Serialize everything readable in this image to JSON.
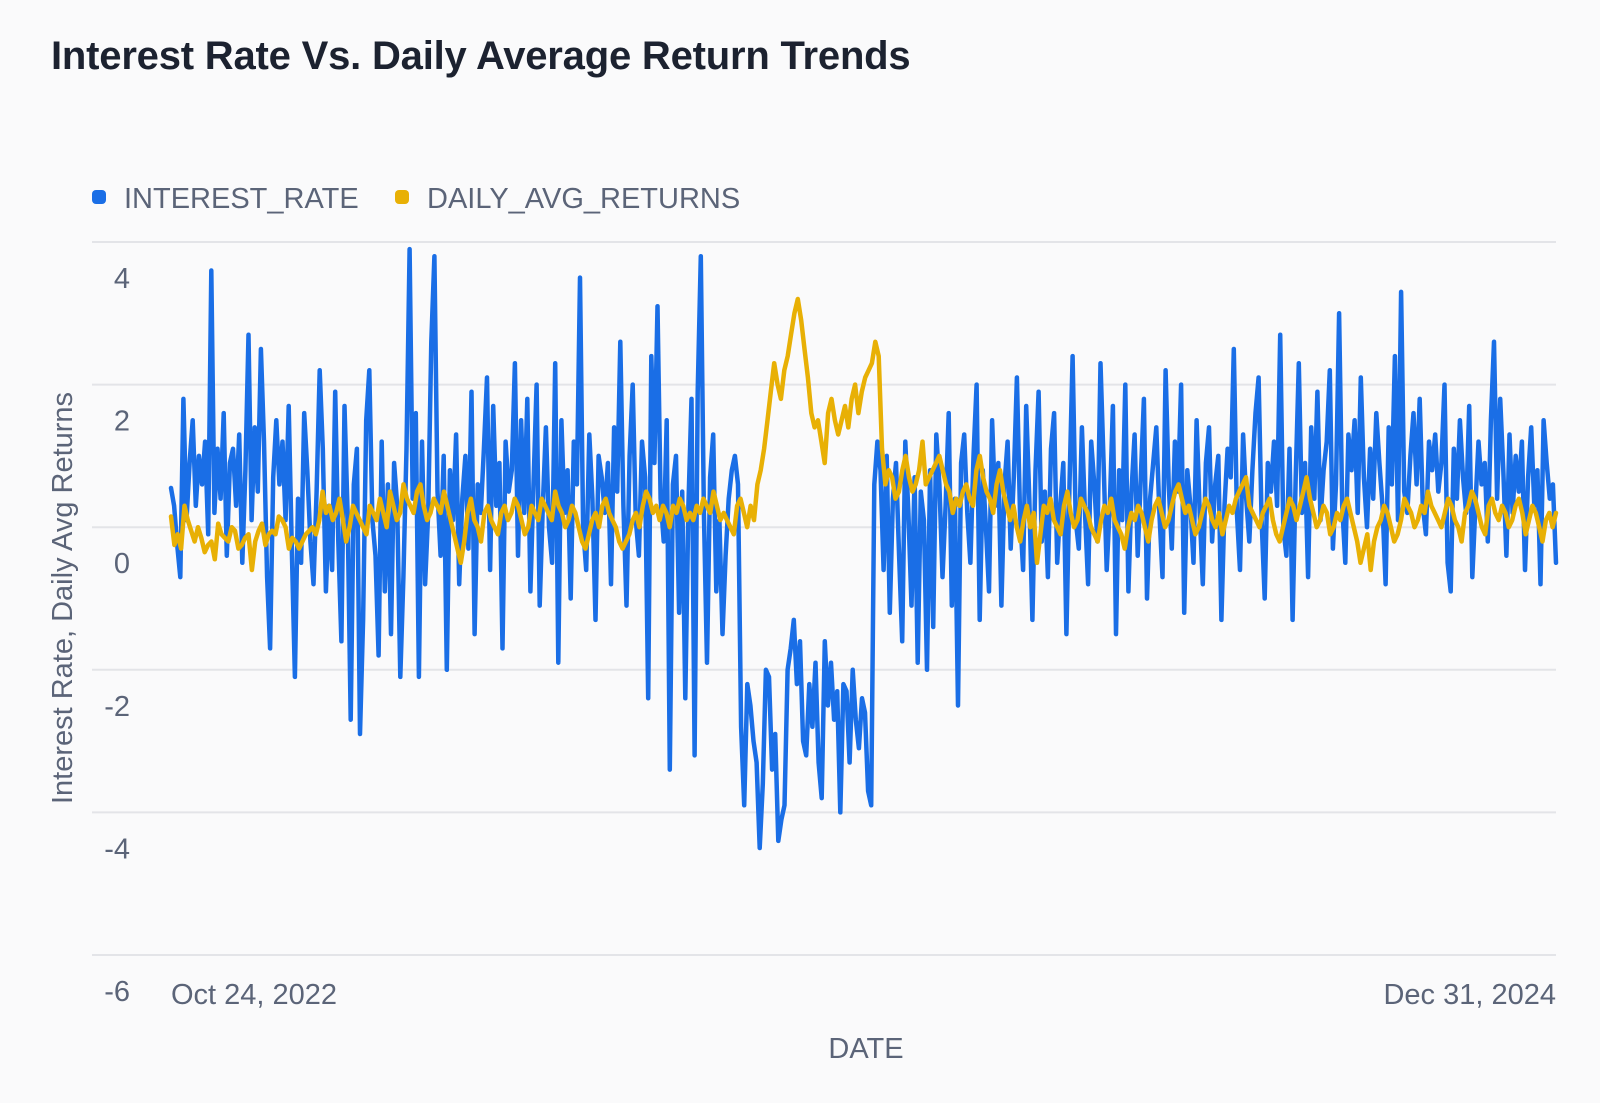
{
  "chart_data": {
    "type": "line",
    "title": "Interest Rate Vs. Daily Average Return Trends",
    "xlabel": "DATE",
    "ylabel": "Interest Rate, Daily Avg Returns",
    "x_range": [
      "Oct 24, 2022",
      "Dec 31, 2024"
    ],
    "x_tick_labels": [
      "Oct 24, 2022",
      "Dec 31, 2024"
    ],
    "ylim": [
      -6,
      4
    ],
    "y_ticks": [
      4,
      2,
      0,
      -2,
      -4,
      -6
    ],
    "grid": true,
    "legend_position": "top-left",
    "series": [
      {
        "name": "INTEREST_RATE",
        "color": "#1a6ee6",
        "values": [
          0.55,
          0.3,
          -0.25,
          -0.7,
          1.8,
          0.1,
          0.9,
          1.5,
          0.3,
          1.0,
          0.6,
          1.2,
          -0.1,
          3.6,
          0.2,
          1.1,
          0.4,
          1.6,
          -0.4,
          0.9,
          1.1,
          0.3,
          1.3,
          -0.5,
          0.8,
          2.7,
          0.1,
          1.4,
          0.5,
          2.5,
          1.2,
          -0.7,
          -1.7,
          0.7,
          1.5,
          0.6,
          1.2,
          0.1,
          1.7,
          -0.3,
          -2.1,
          0.4,
          -0.5,
          1.6,
          0.8,
          -0.2,
          -0.8,
          0.5,
          2.2,
          1.1,
          -0.9,
          0.3,
          -0.6,
          1.9,
          -0.2,
          -1.6,
          1.7,
          0.2,
          -2.7,
          0.6,
          1.1,
          -2.9,
          -1.3,
          1.5,
          2.2,
          0.1,
          -0.4,
          -1.8,
          1.2,
          -0.9,
          0.6,
          -1.5,
          0.9,
          0.3,
          -2.1,
          -0.7,
          1.1,
          3.9,
          0.4,
          1.6,
          -2.1,
          1.2,
          -0.8,
          0.2,
          2.6,
          3.8,
          0.5,
          -0.4,
          1.0,
          -2.0,
          0.8,
          0.1,
          1.3,
          -0.8,
          0.4,
          1.0,
          -0.3,
          1.9,
          -1.5,
          0.6,
          0.2,
          1.1,
          2.1,
          -0.6,
          1.7,
          0.3,
          0.9,
          -1.7,
          1.2,
          0.5,
          0.8,
          2.3,
          -0.4,
          1.5,
          0.2,
          1.8,
          -0.9,
          0.6,
          2.0,
          -1.1,
          0.3,
          1.4,
          0.0,
          -0.5,
          2.3,
          -1.9,
          1.5,
          0.2,
          0.8,
          -1.0,
          1.2,
          0.6,
          3.5,
          0.0,
          -0.6,
          1.3,
          0.4,
          -1.3,
          1.0,
          0.7,
          0.2,
          0.9,
          -0.8,
          1.4,
          0.5,
          2.6,
          0.3,
          -1.1,
          1.0,
          2.0,
          0.1,
          -0.4,
          1.2,
          0.7,
          -2.4,
          2.4,
          0.9,
          3.1,
          0.4,
          -0.2,
          1.5,
          -3.4,
          0.6,
          1.0,
          -1.2,
          0.5,
          -2.4,
          0.3,
          1.8,
          -3.2,
          1.9,
          3.8,
          0.2,
          -1.9,
          0.7,
          1.3,
          -0.9,
          0.1,
          -1.5,
          -0.4,
          0.4,
          0.8,
          1.0,
          0.6,
          -2.8,
          -3.9,
          -2.2,
          -2.5,
          -3.0,
          -3.3,
          -4.5,
          -3.6,
          -2.0,
          -2.1,
          -3.4,
          -2.9,
          -4.4,
          -4.1,
          -3.9,
          -2.0,
          -1.7,
          -1.3,
          -2.2,
          -1.6,
          -3.0,
          -3.2,
          -2.2,
          -2.8,
          -1.9,
          -3.3,
          -3.8,
          -1.6,
          -2.5,
          -1.9,
          -2.7,
          -2.3,
          -4.0,
          -2.2,
          -2.3,
          -3.3,
          -2.0,
          -2.7,
          -3.1,
          -2.4,
          -2.6,
          -3.7,
          -3.9,
          0.6,
          1.2,
          0.8,
          -0.6,
          1.0,
          -1.2,
          0.4,
          0.9,
          -0.4,
          -1.6,
          1.2,
          0.2,
          -1.1,
          0.7,
          -1.9,
          0.5,
          0.1,
          -2.0,
          0.8,
          -1.4,
          1.3,
          0.6,
          -0.7,
          0.3,
          1.6,
          -1.1,
          0.4,
          -2.5,
          0.9,
          1.3,
          0.2,
          -0.5,
          1.0,
          2.0,
          -1.3,
          0.8,
          0.0,
          -0.9,
          1.5,
          0.3,
          0.9,
          -1.1,
          0.6,
          1.2,
          -0.3,
          0.7,
          2.1,
          0.2,
          -0.6,
          1.7,
          0.4,
          -1.3,
          0.8,
          1.9,
          -0.2,
          0.5,
          -0.7,
          1.1,
          1.6,
          -0.5,
          0.3,
          0.9,
          -1.5,
          0.6,
          2.4,
          0.1,
          -0.3,
          1.4,
          0.2,
          -0.8,
          1.2,
          0.6,
          -0.2,
          2.3,
          0.9,
          -0.6,
          0.3,
          1.7,
          -1.5,
          0.8,
          0.1,
          2.0,
          -0.9,
          0.5,
          1.3,
          -0.4,
          0.7,
          1.8,
          -1.0,
          0.4,
          0.9,
          1.4,
          0.2,
          -0.7,
          2.2,
          0.6,
          -0.3,
          1.2,
          0.5,
          2.0,
          -1.2,
          0.8,
          0.3,
          -0.5,
          1.5,
          0.2,
          -0.8,
          0.9,
          1.4,
          -0.2,
          0.6,
          1.0,
          -1.3,
          0.3,
          1.1,
          0.7,
          2.5,
          0.2,
          -0.6,
          1.3,
          0.4,
          -0.2,
          0.8,
          1.6,
          2.1,
          0.1,
          -1.0,
          0.9,
          0.5,
          1.2,
          0.3,
          2.7,
          0.0,
          -0.4,
          1.1,
          -1.3,
          0.7,
          2.3,
          0.2,
          0.9,
          -0.7,
          1.4,
          0.4,
          1.9,
          0.1,
          0.8,
          1.2,
          2.2,
          -0.3,
          0.6,
          3.0,
          0.3,
          -0.5,
          1.3,
          0.8,
          1.5,
          0.2,
          2.1,
          0.7,
          0.0,
          1.1,
          0.4,
          1.6,
          0.9,
          0.3,
          -0.8,
          1.4,
          0.6,
          2.4,
          0.1,
          3.3,
          0.5,
          0.2,
          1.0,
          1.6,
          0.6,
          1.8,
          0.3,
          -0.1,
          1.2,
          0.8,
          1.3,
          0.5,
          0.9,
          2.0,
          -0.5,
          -0.9,
          1.1,
          0.4,
          1.5,
          0.7,
          0.2,
          1.7,
          -0.7,
          0.3,
          1.2,
          0.6,
          0.9,
          -0.2,
          1.5,
          2.6,
          0.4,
          1.8,
          0.8,
          -0.4,
          1.3,
          0.2,
          1.0,
          0.5,
          1.2,
          -0.6,
          0.7,
          1.4,
          0.3,
          0.8,
          -0.8,
          1.5,
          0.9,
          0.4,
          0.6,
          -0.5
        ]
      },
      {
        "name": "DAILY_AVG_RETURNS",
        "color": "#e8b005",
        "values": [
          0.15,
          -0.25,
          -0.1,
          -0.3,
          0.3,
          0.1,
          -0.05,
          -0.2,
          0.0,
          -0.15,
          -0.35,
          -0.25,
          -0.2,
          -0.45,
          0.05,
          -0.1,
          -0.15,
          -0.2,
          0.0,
          -0.05,
          -0.3,
          -0.25,
          -0.15,
          -0.1,
          -0.6,
          -0.2,
          -0.05,
          0.05,
          -0.25,
          -0.1,
          -0.05,
          -0.1,
          0.15,
          0.1,
          0.0,
          -0.3,
          -0.15,
          -0.2,
          -0.3,
          -0.2,
          -0.1,
          -0.05,
          0.0,
          -0.1,
          0.1,
          0.5,
          0.2,
          0.3,
          0.1,
          0.2,
          0.4,
          0.1,
          -0.2,
          0.0,
          0.3,
          0.2,
          0.1,
          0.0,
          -0.1,
          0.3,
          0.2,
          0.1,
          0.4,
          0.2,
          0.0,
          0.5,
          0.3,
          0.1,
          0.2,
          0.6,
          0.4,
          0.3,
          0.2,
          0.5,
          0.6,
          0.3,
          0.1,
          0.2,
          0.4,
          0.3,
          0.2,
          0.5,
          0.3,
          0.1,
          -0.1,
          -0.3,
          -0.5,
          -0.2,
          0.2,
          0.4,
          0.1,
          0.0,
          -0.2,
          0.2,
          0.3,
          0.1,
          0.0,
          -0.1,
          0.2,
          0.3,
          0.1,
          0.2,
          0.4,
          0.3,
          0.1,
          -0.1,
          0.0,
          0.3,
          0.2,
          0.1,
          0.4,
          0.3,
          0.2,
          0.1,
          0.5,
          0.3,
          0.2,
          0.0,
          0.1,
          0.3,
          0.2,
          0.0,
          -0.2,
          -0.3,
          -0.1,
          0.1,
          0.2,
          0.0,
          0.3,
          0.4,
          0.2,
          0.1,
          0.0,
          -0.2,
          -0.3,
          -0.2,
          -0.1,
          0.1,
          0.2,
          0.0,
          0.3,
          0.5,
          0.4,
          0.2,
          0.3,
          0.1,
          0.3,
          0.2,
          0.0,
          0.3,
          0.2,
          0.4,
          0.3,
          0.1,
          0.2,
          0.1,
          0.3,
          0.2,
          0.4,
          0.3,
          0.2,
          0.5,
          0.3,
          0.1,
          0.2,
          0.1,
          0.0,
          -0.1,
          0.3,
          0.4,
          0.2,
          0.0,
          0.3,
          0.1,
          0.6,
          0.8,
          1.1,
          1.5,
          1.9,
          2.3,
          2.0,
          1.8,
          2.2,
          2.4,
          2.7,
          3.0,
          3.2,
          2.9,
          2.5,
          2.1,
          1.6,
          1.4,
          1.5,
          1.2,
          0.9,
          1.6,
          1.8,
          1.5,
          1.3,
          1.5,
          1.7,
          1.4,
          1.8,
          2.0,
          1.6,
          1.9,
          2.1,
          2.2,
          2.3,
          2.6,
          2.4,
          1.1,
          0.6,
          0.8,
          0.7,
          0.4,
          0.5,
          0.8,
          1.0,
          0.7,
          0.5,
          0.6,
          0.8,
          1.2,
          0.6,
          0.7,
          0.8,
          0.9,
          1.0,
          0.8,
          0.6,
          0.5,
          0.2,
          0.4,
          0.3,
          0.5,
          0.6,
          0.4,
          0.3,
          0.8,
          1.0,
          0.7,
          0.5,
          0.4,
          0.2,
          0.6,
          0.8,
          0.5,
          0.3,
          0.1,
          0.3,
          0.0,
          -0.2,
          0.1,
          0.3,
          0.0,
          0.2,
          -0.5,
          -0.1,
          0.3,
          0.2,
          0.4,
          0.1,
          0.0,
          -0.1,
          0.3,
          0.5,
          0.2,
          0.0,
          0.1,
          0.4,
          0.3,
          0.2,
          0.0,
          -0.1,
          -0.2,
          0.1,
          0.3,
          0.2,
          0.4,
          0.1,
          0.0,
          -0.1,
          -0.3,
          0.0,
          0.2,
          0.1,
          0.3,
          0.2,
          0.0,
          -0.2,
          0.1,
          0.3,
          0.4,
          0.2,
          0.0,
          0.1,
          0.3,
          0.5,
          0.6,
          0.4,
          0.2,
          0.3,
          0.1,
          -0.1,
          0.0,
          0.2,
          0.4,
          0.3,
          0.1,
          0.0,
          0.2,
          -0.1,
          0.1,
          0.3,
          0.2,
          0.4,
          0.5,
          0.6,
          0.7,
          0.3,
          0.2,
          0.1,
          0.0,
          0.2,
          0.3,
          0.4,
          0.1,
          -0.1,
          -0.2,
          0.0,
          0.2,
          0.4,
          0.3,
          0.1,
          0.3,
          0.5,
          0.7,
          0.4,
          0.2,
          0.0,
          0.1,
          0.3,
          0.2,
          -0.1,
          0.0,
          0.2,
          0.1,
          0.3,
          0.4,
          0.2,
          0.0,
          -0.2,
          -0.5,
          -0.3,
          -0.1,
          -0.6,
          -0.2,
          0.0,
          0.1,
          0.3,
          0.2,
          0.0,
          -0.2,
          -0.1,
          0.1,
          0.4,
          0.3,
          0.2,
          0.0,
          0.1,
          0.3,
          0.2,
          0.5,
          0.3,
          0.2,
          0.1,
          0.0,
          0.2,
          0.4,
          0.3,
          0.1,
          0.0,
          -0.2,
          0.2,
          0.3,
          0.5,
          0.4,
          0.2,
          0.0,
          -0.1,
          0.3,
          0.4,
          0.2,
          0.1,
          0.3,
          0.2,
          0.0,
          0.1,
          0.3,
          0.4,
          0.2,
          -0.1,
          0.1,
          0.3,
          0.2,
          0.0,
          -0.2,
          0.1,
          0.2,
          0.0,
          0.2
        ]
      }
    ]
  }
}
